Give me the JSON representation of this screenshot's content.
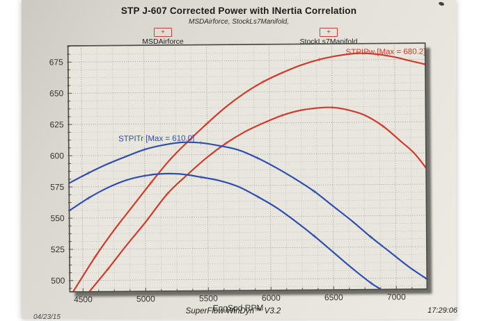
{
  "page": {
    "title": "STP J-607 Corrected Power with INertia Correlation",
    "subtitle": "MSDAirforce, StockLs7Manifold,",
    "footer_center": "SuperFlow WinDyn™ V3.2",
    "footer_right": "17:29:06",
    "footer_date": "04/23/15"
  },
  "legend": {
    "marker_glyph": "+",
    "marker_color": "#c23a2e",
    "items": [
      {
        "label": "MSDAirforce"
      },
      {
        "label": "StockLs7Manifold"
      }
    ]
  },
  "chart_data": {
    "type": "line",
    "title": "STP J-607 Corrected Power with INertia Correlation",
    "xlabel": "EngSpd RPM",
    "ylabel": "",
    "xlim": [
      4395,
      7245
    ],
    "ylim": [
      491,
      688
    ],
    "x_ticks": [
      4500,
      5000,
      5500,
      6000,
      6500,
      7000
    ],
    "y_ticks": [
      500,
      525,
      550,
      575,
      600,
      625,
      650,
      675
    ],
    "x_minor_step": 125,
    "y_minor_step": 6.25,
    "grid": "dotted",
    "legend_position": "top",
    "colors": {
      "power": "#cf3a2d",
      "torque": "#2e4db0",
      "frame": "#4e4c47",
      "grid_minor": "#bdbbb2",
      "grid_major": "#97958c",
      "tick_text": "#34332f"
    },
    "annotations": [
      {
        "text": "STPIPw [Max = 680.2]",
        "kind": "power",
        "rpm": 6930,
        "value": 681.5
      },
      {
        "text": "STPITr [Max = 610.0]",
        "kind": "torque",
        "rpm": 5095,
        "value": 613.5
      }
    ],
    "series": [
      {
        "name": "STPIPw - MSDAirforce",
        "kind": "power",
        "max": 680.2,
        "points": [
          [
            4420,
            491
          ],
          [
            4600,
            519
          ],
          [
            4750,
            540
          ],
          [
            4900,
            559
          ],
          [
            5050,
            578
          ],
          [
            5200,
            596
          ],
          [
            5350,
            611
          ],
          [
            5500,
            625
          ],
          [
            5650,
            638
          ],
          [
            5800,
            649
          ],
          [
            5950,
            658
          ],
          [
            6100,
            665
          ],
          [
            6250,
            671
          ],
          [
            6400,
            675.5
          ],
          [
            6550,
            678.5
          ],
          [
            6700,
            680.2
          ],
          [
            6850,
            679.5
          ],
          [
            7000,
            677
          ],
          [
            7120,
            674
          ],
          [
            7245,
            671
          ]
        ]
      },
      {
        "name": "STPIPw - StockLs7Manifold",
        "kind": "power",
        "max": 637.0,
        "points": [
          [
            4550,
            491
          ],
          [
            4700,
            509
          ],
          [
            4850,
            528
          ],
          [
            5000,
            546
          ],
          [
            5180,
            569
          ],
          [
            5350,
            585
          ],
          [
            5500,
            598
          ],
          [
            5650,
            609
          ],
          [
            5800,
            618
          ],
          [
            5950,
            625
          ],
          [
            6100,
            631
          ],
          [
            6250,
            635
          ],
          [
            6400,
            636.8
          ],
          [
            6500,
            637
          ],
          [
            6600,
            635.5
          ],
          [
            6750,
            631
          ],
          [
            6900,
            622
          ],
          [
            7050,
            609
          ],
          [
            7150,
            600
          ],
          [
            7245,
            588
          ]
        ]
      },
      {
        "name": "STPITr - MSDAirforce",
        "kind": "torque",
        "max": 610.0,
        "points": [
          [
            4395,
            578
          ],
          [
            4550,
            586
          ],
          [
            4700,
            593
          ],
          [
            4850,
            599
          ],
          [
            5000,
            604.5
          ],
          [
            5150,
            608
          ],
          [
            5300,
            610
          ],
          [
            5450,
            609.5
          ],
          [
            5600,
            607
          ],
          [
            5750,
            603.5
          ],
          [
            5900,
            597
          ],
          [
            6050,
            589
          ],
          [
            6200,
            580
          ],
          [
            6350,
            570
          ],
          [
            6500,
            558
          ],
          [
            6650,
            546
          ],
          [
            6800,
            533
          ],
          [
            6950,
            521
          ],
          [
            7100,
            509
          ],
          [
            7245,
            499
          ]
        ]
      },
      {
        "name": "STPITr - StockLs7Manifold",
        "kind": "torque",
        "max": 585.0,
        "points": [
          [
            4395,
            556
          ],
          [
            4550,
            566
          ],
          [
            4700,
            574
          ],
          [
            4850,
            580
          ],
          [
            5000,
            583.5
          ],
          [
            5150,
            585
          ],
          [
            5300,
            584.5
          ],
          [
            5450,
            582
          ],
          [
            5600,
            579
          ],
          [
            5750,
            574
          ],
          [
            5900,
            566
          ],
          [
            6050,
            557
          ],
          [
            6200,
            546
          ],
          [
            6350,
            534
          ],
          [
            6500,
            521
          ],
          [
            6650,
            508
          ],
          [
            6800,
            496
          ],
          [
            6870,
            491.5
          ]
        ]
      }
    ]
  }
}
